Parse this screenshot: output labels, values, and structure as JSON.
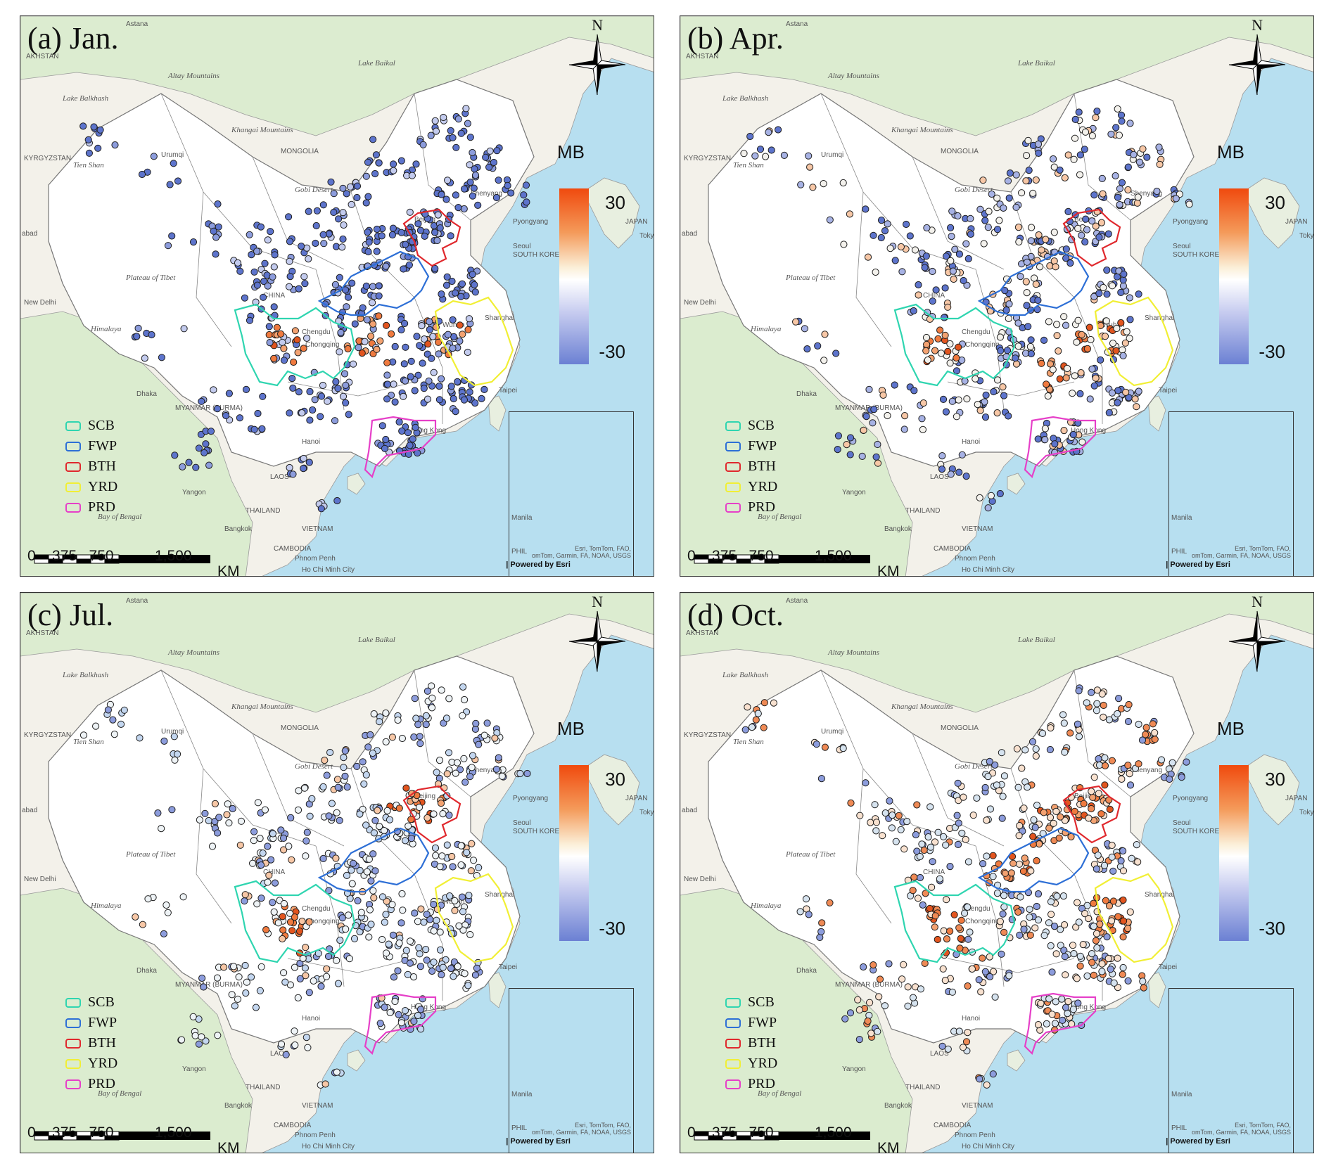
{
  "panels": [
    {
      "title": "(a) Jan.",
      "scheme": "jan"
    },
    {
      "title": "(b) Apr.",
      "scheme": "apr"
    },
    {
      "title": "(c) Jul.",
      "scheme": "jul"
    },
    {
      "title": "(d) Oct.",
      "scheme": "oct"
    }
  ],
  "north_label": "N",
  "colorbar": {
    "title": "MB",
    "max": "30",
    "min": "-30",
    "colors": [
      "#f04a0e",
      "#ffffff",
      "#6b80d3"
    ]
  },
  "legend": [
    {
      "label": "SCB",
      "color": "#2fd5b0"
    },
    {
      "label": "FWP",
      "color": "#2d6fd6"
    },
    {
      "label": "BTH",
      "color": "#e0282d"
    },
    {
      "label": "YRD",
      "color": "#f1ef35"
    },
    {
      "label": "PRD",
      "color": "#e640c8"
    }
  ],
  "scale_bar": {
    "labels": "0    375   750          1,500",
    "unit": "KM"
  },
  "credit": {
    "line1": "Esri, TomTom, FAO,",
    "line2": "omTom, Garmin, FA, NOAA, USGS",
    "powered": "| Powered by Esri"
  },
  "place_labels": [
    "Astana",
    "AKHSTAN",
    "Lake Baikal",
    "Altay Mountains",
    "Lake Balkhash",
    "Khangai Mountains",
    "MONGOLIA",
    "KYRGYZSTAN",
    "Tien Shan",
    "Urumqi",
    "Gobi Desert",
    "Shenyang",
    "Pyongyang",
    "JAPAN",
    "Tokyo",
    "abad",
    "Beijing",
    "Seoul",
    "SOUTH KOREA",
    "Plateau of Tibet",
    "CHINA",
    "New Delhi",
    "Chengdu",
    "Chongqing",
    "Wuhan",
    "Shanghai",
    "Himalaya",
    "Dhaka",
    "MYANMAR (BURMA)",
    "Taipei",
    "Hanoi",
    "Hong Kong",
    "LAOS",
    "Yangon",
    "THAILAND",
    "Bay of Bengal",
    "Bangkok",
    "VIETNAM",
    "CAMBODIA",
    "Phnom Penh",
    "Ho Chi Minh City",
    "Manila",
    "PHIL"
  ]
}
